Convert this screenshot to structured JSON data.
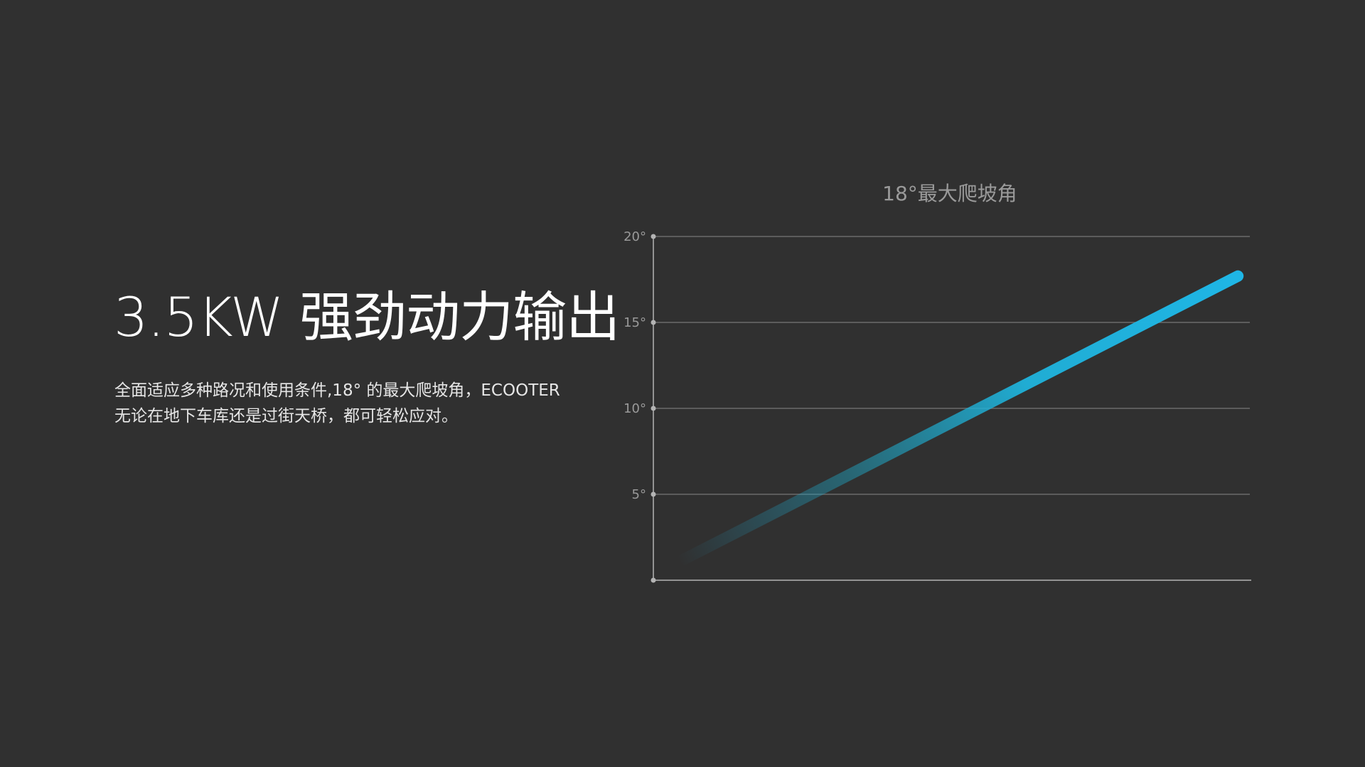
{
  "headline": "3.5KW 强劲动力输出",
  "description": {
    "line1": "全面适应多种路况和使用条件,18° 的最大爬坡角，ECOOTER",
    "line2": "无论在地下车库还是过街天桥，都可轻松应对。"
  },
  "colors": {
    "background": "#303030",
    "accent": "#1fb6e6",
    "grid": "#6a6a6a",
    "axis": "#b4b4b4",
    "muted_text": "#9a9a9a"
  },
  "chart_data": {
    "type": "line",
    "title": "18°最大爬坡角",
    "xlabel": "",
    "ylabel": "",
    "ylim": [
      0,
      20
    ],
    "y_ticks": [
      {
        "value": 20,
        "label": "20°"
      },
      {
        "value": 15,
        "label": "15°"
      },
      {
        "value": 10,
        "label": "10°"
      },
      {
        "value": 5,
        "label": "5°"
      }
    ],
    "grid": true,
    "legend": "none",
    "series": [
      {
        "points": [
          {
            "x": 0.05,
            "y": 1.2
          },
          {
            "x": 0.98,
            "y": 17.7
          }
        ]
      }
    ]
  }
}
